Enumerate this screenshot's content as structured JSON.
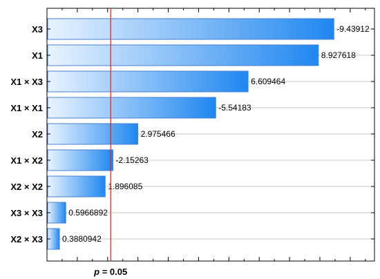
{
  "chart_data": {
    "type": "bar",
    "orientation": "horizontal",
    "categories": [
      "X3",
      "X1",
      "X1 × X3",
      "X1 × X1",
      "X2",
      "X1 × X2",
      "X2 × X2",
      "X3 × X3",
      "X2 × X3"
    ],
    "values": [
      9.43912,
      8.927618,
      6.609464,
      5.54183,
      2.975466,
      2.15263,
      1.896085,
      0.5966892,
      0.3880942
    ],
    "value_labels": [
      "-9.43912",
      "8.927618",
      "6.609464",
      "-5.54183",
      "2.975466",
      "-2.15263",
      "1.896085",
      "0.5966892",
      "0.3880942"
    ],
    "xlim": [
      0,
      10.8
    ],
    "reference_line": {
      "value": 2.1,
      "label_prefix": "p",
      "label_suffix": " = 0.05",
      "color": "#d62020"
    },
    "grid": true,
    "bar_color_start": "#e8f3ff",
    "bar_color_end": "#1f87f0",
    "bar_border_color": "#4a7fd0"
  }
}
